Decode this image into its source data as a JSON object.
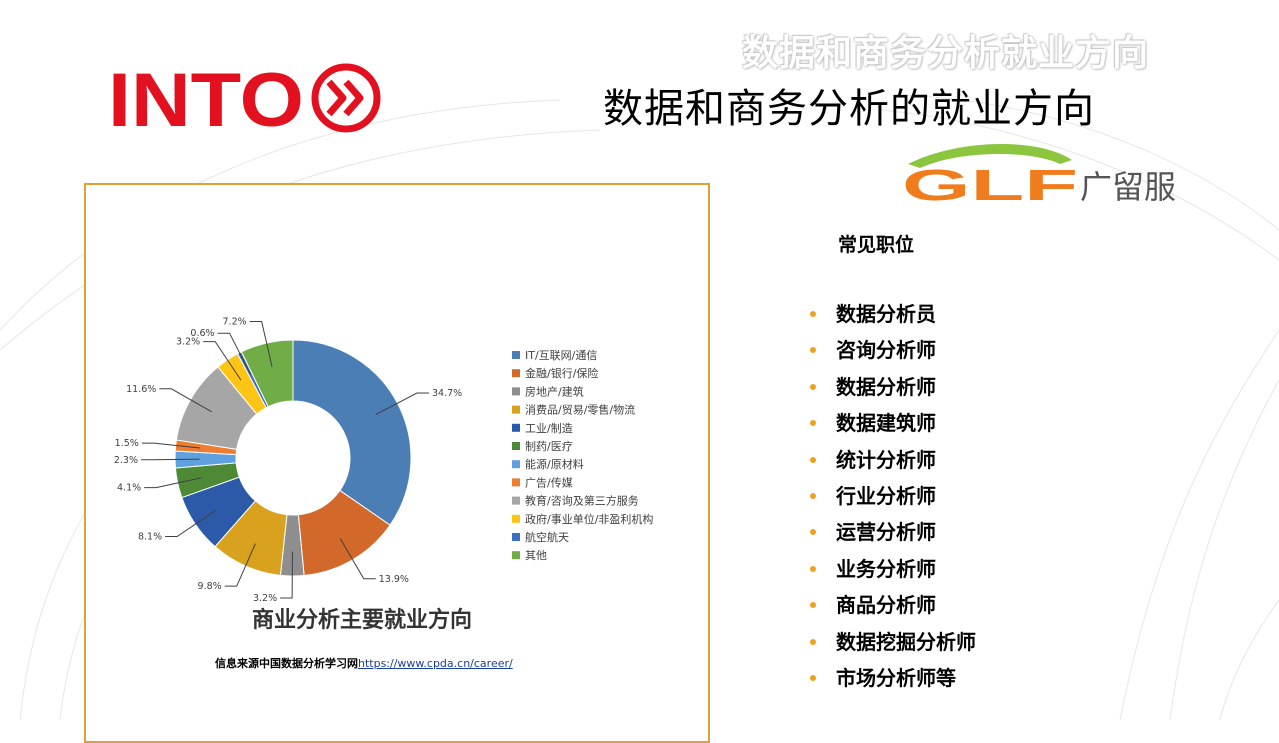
{
  "slide": {
    "ghost_title": "数据和商务分析就业方向",
    "title": "数据和商务分析的就业方向",
    "into_logo_text": "INTO",
    "glf_logo_text": "广留服",
    "glf_letters": "GLF"
  },
  "chart_data": {
    "type": "pie",
    "donut": true,
    "title": "商业分析主要就业方向",
    "legend_placement": "right",
    "slices": [
      {
        "label": "IT/互联网/通信",
        "value": 34.7,
        "display": "34.7%",
        "color": "#4a7eb5"
      },
      {
        "label": "金融/银行/保险",
        "value": 13.9,
        "display": "13.9%",
        "color": "#d2692a"
      },
      {
        "label": "房地产/建筑",
        "value": 3.2,
        "display": "3.2%",
        "color": "#8e8e8e"
      },
      {
        "label": "消费品/贸易/零售/物流",
        "value": 9.8,
        "display": "9.8%",
        "color": "#d9a21e"
      },
      {
        "label": "工业/制造",
        "value": 8.1,
        "display": "8.1%",
        "color": "#2d5aa8"
      },
      {
        "label": "制药/医疗",
        "value": 4.1,
        "display": "4.1%",
        "color": "#4e8a36"
      },
      {
        "label": "能源/原材料",
        "value": 2.3,
        "display": "2.3%",
        "color": "#5ea1de"
      },
      {
        "label": "广告/传媒",
        "value": 1.5,
        "display": "1.5%",
        "color": "#ed7d31"
      },
      {
        "label": "教育/咨询及第三方服务",
        "value": 11.6,
        "display": "11.6%",
        "color": "#a6a6a6"
      },
      {
        "label": "政府/事业单位/非盈利机构",
        "value": 3.2,
        "display": "3.2%",
        "color": "#ffc515"
      },
      {
        "label": "航空航天",
        "value": 0.6,
        "display": "0.6%",
        "color": "#3a6fc4"
      },
      {
        "label": "其他",
        "value": 7.2,
        "display": "7.2%",
        "color": "#70ad47"
      }
    ]
  },
  "source": {
    "prefix": "信息来源中国数据分析学习网",
    "url_text": "https://www.cpda.cn/career/"
  },
  "jobs": {
    "title": "常见职位",
    "items": [
      "数据分析员",
      "咨询分析师",
      "数据分析师",
      "数据建筑师",
      "统计分析师",
      "行业分析师",
      "运营分析师",
      "业务分析师",
      "商品分析师",
      "数据挖掘分析师",
      "市场分析师等"
    ]
  }
}
